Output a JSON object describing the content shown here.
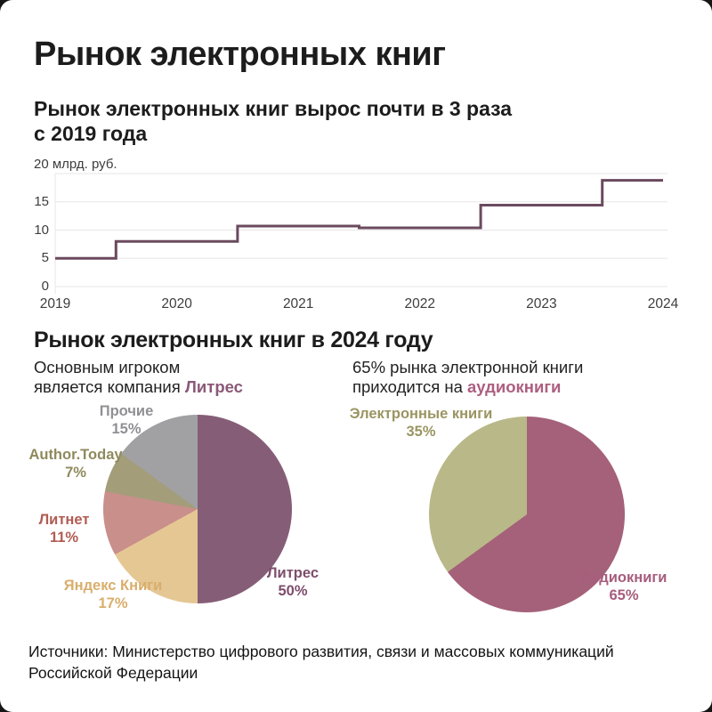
{
  "header": {
    "title": "Рынок электронных книг"
  },
  "step_section": {
    "heading_line1": "Рынок электронных книг вырос почти в 3 раза",
    "heading_line2": "с 2019 года"
  },
  "section_2024": {
    "title": "Рынок электронных книг в 2024 году",
    "intro_left": {
      "line1": "Основным игроком",
      "line2_prefix": "является компания ",
      "accent": "Литрес",
      "accent_color": "#8a5878"
    },
    "intro_right": {
      "line1": "65% рынка электронной книги",
      "line2_prefix": "приходится на ",
      "accent": "аудиокниги",
      "accent_color": "#ac5f80"
    }
  },
  "footer": {
    "source_line1": "Источники: Министерство цифрового развития, связи и массовых коммуникаций",
    "source_line2": "Российской Федерации"
  },
  "chart_data": [
    {
      "type": "line",
      "subtype": "step",
      "title": "Рынок электронных книг вырос почти в 3 раза с 2019 года",
      "ylabel": "млрд. руб.",
      "ytop_label": "20 млрд. руб.",
      "x": [
        2019,
        2020,
        2021,
        2022,
        2023,
        2024
      ],
      "values": [
        5,
        8,
        10.7,
        10.4,
        14.4,
        18.8
      ],
      "step_transitions": "mid-year",
      "xticks": [
        "2019",
        "2020",
        "2021",
        "2022",
        "2023",
        "2024"
      ],
      "yticks": [
        0,
        5,
        10,
        15
      ],
      "ylim": [
        0,
        20
      ],
      "grid": true,
      "legend": "none",
      "line_color": "#6b4a5e",
      "grid_color": "#e8e6e7"
    },
    {
      "type": "pie",
      "caption": "Основным игроком является компания Литрес",
      "start_angle_deg": 0,
      "direction": "clockwise",
      "slices": [
        {
          "label": "Литрес",
          "value": 50,
          "display": "50%",
          "color": "#865d77",
          "label_color": "#7d4e6b"
        },
        {
          "label": "Яндекс Книги",
          "value": 17,
          "display": "17%",
          "color": "#e5c794",
          "label_color": "#d9ae6c"
        },
        {
          "label": "Литнет",
          "value": 11,
          "display": "11%",
          "color": "#c98f8b",
          "label_color": "#b15c53"
        },
        {
          "label": "Author.Today",
          "value": 7,
          "display": "7%",
          "color": "#a39d7a",
          "label_color": "#8f8a5d"
        },
        {
          "label": "Прочие",
          "value": 15,
          "display": "15%",
          "color": "#a1a1a4",
          "label_color": "#909094"
        }
      ]
    },
    {
      "type": "pie",
      "caption": "65% рынка электронной книги приходится на аудиокниги",
      "start_angle_deg": 0,
      "direction": "clockwise",
      "slices": [
        {
          "label": "Аудиокниги",
          "value": 65,
          "display": "65%",
          "color": "#a56179",
          "label_color": "#a75d7d"
        },
        {
          "label": "Электронные книги",
          "value": 35,
          "display": "35%",
          "color": "#b9b888",
          "label_color": "#9a9562"
        }
      ]
    }
  ]
}
